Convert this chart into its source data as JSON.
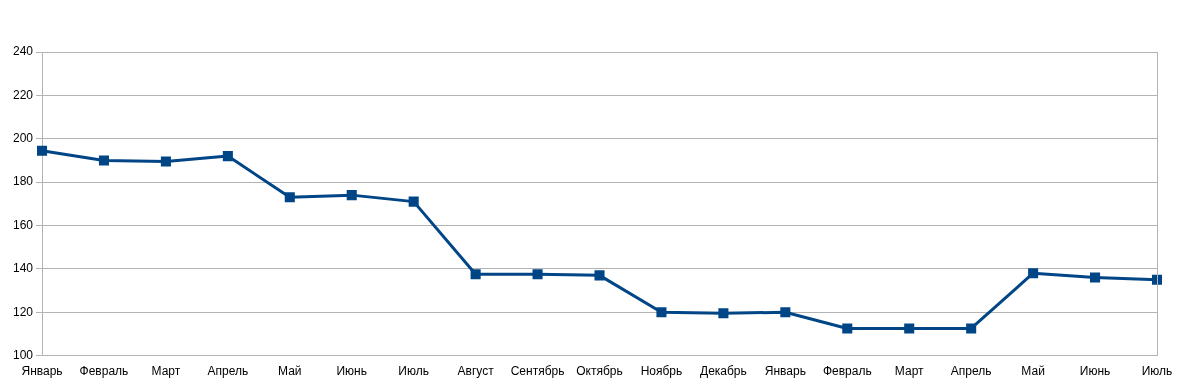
{
  "chart_data": {
    "type": "line",
    "categories": [
      "Январь",
      "Февраль",
      "Март",
      "Апрель",
      "Май",
      "Июнь",
      "Июль",
      "Август",
      "Сентябрь",
      "Октябрь",
      "Ноябрь",
      "Декабрь",
      "Январь",
      "Февраль",
      "Март",
      "Апрель",
      "Май",
      "Июнь",
      "Июль"
    ],
    "series": [
      {
        "color": "#004586",
        "values": [
          194.5,
          190,
          189.5,
          192,
          173,
          174,
          171,
          137.5,
          137.5,
          137,
          120,
          119.5,
          120,
          112.5,
          112.5,
          112.5,
          138,
          136,
          135
        ]
      }
    ],
    "ylim": [
      100,
      240
    ],
    "yticks": [
      100,
      120,
      140,
      160,
      180,
      200,
      220,
      240
    ],
    "grid": "y",
    "legend": false,
    "marker": "square",
    "line_style": "solid"
  }
}
